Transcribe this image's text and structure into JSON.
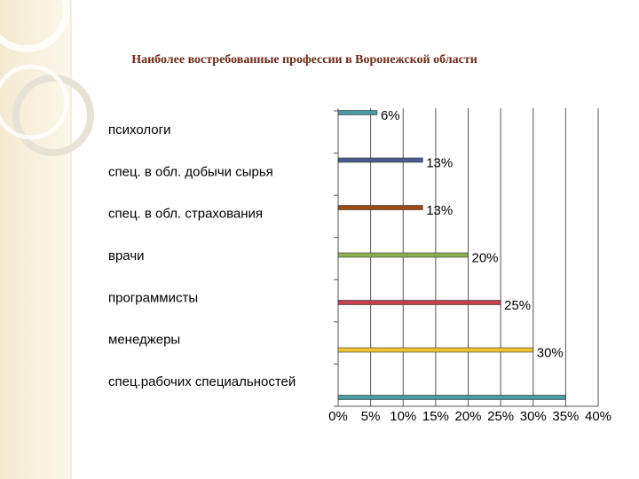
{
  "chart_data": {
    "type": "bar",
    "orientation": "horizontal",
    "title": "Наиболее востребованные профессии в Воронежской области",
    "categories": [
      "психологи",
      "спец. в обл. добычи сырья",
      "спец. в обл. страхования",
      "врачи",
      "программисты",
      "менеджеры",
      "спец.рабочих специальностей"
    ],
    "series": [
      {
        "values": [
          6,
          13,
          13,
          20,
          25,
          30,
          35
        ],
        "value_labels": [
          "6%",
          "13%",
          "13%",
          "20%",
          "25%",
          "30%",
          null
        ],
        "colors": [
          "#4a9aa2",
          "#4a5a8e",
          "#9a4a12",
          "#8eae52",
          "#c2404c",
          "#eec232",
          "#4a9aa2"
        ]
      }
    ],
    "xlim": [
      0,
      40
    ],
    "xticks": [
      {
        "value": 0,
        "label": "0%"
      },
      {
        "value": 5,
        "label": "5%"
      },
      {
        "value": 10,
        "label": "10%"
      },
      {
        "value": 15,
        "label": "15%"
      },
      {
        "value": 20,
        "label": "20%"
      },
      {
        "value": 25,
        "label": "25%"
      },
      {
        "value": 30,
        "label": "30%"
      },
      {
        "value": 35,
        "label": "35%"
      },
      {
        "value": 40,
        "label": "40%"
      }
    ],
    "grid": true
  }
}
